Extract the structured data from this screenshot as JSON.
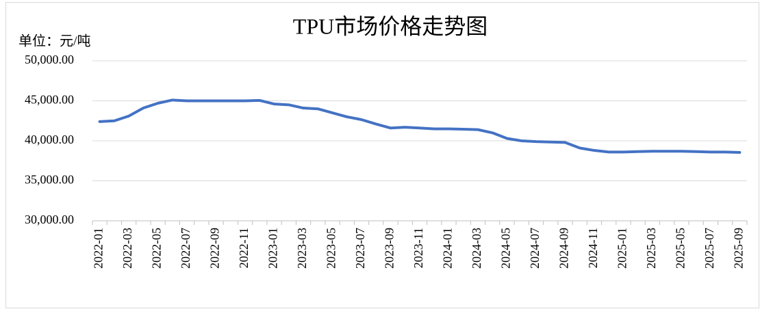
{
  "chart_data": {
    "type": "line",
    "title": "TPU市场价格走势图",
    "y_axis_label": "单位：元/吨",
    "categories": [
      "2022-01",
      null,
      "2022-03",
      null,
      "2022-05",
      null,
      "2022-07",
      null,
      "2022-09",
      null,
      "2022-11",
      null,
      "2023-01",
      null,
      "2023-03",
      null,
      "2023-05",
      null,
      "2023-07",
      null,
      "2023-09",
      null,
      "2023-11",
      null,
      "2024-01",
      null,
      "2024-03",
      null,
      "2024-05",
      null,
      "2024-07",
      null,
      "2024-09",
      null,
      "2024-11",
      null,
      "2025-01",
      null,
      "2025-03",
      null,
      "2025-05",
      null,
      "2025-07",
      null,
      "2025-09"
    ],
    "series": [
      {
        "name": "TPU",
        "color": "#4472c4",
        "values": [
          42400,
          42500,
          43100,
          44100,
          44700,
          45100,
          45000,
          45000,
          45000,
          45000,
          45000,
          45050,
          44600,
          44500,
          44100,
          44000,
          43500,
          43000,
          42650,
          42100,
          41600,
          41700,
          41600,
          41500,
          41500,
          41450,
          41400,
          41000,
          40300,
          40000,
          39900,
          39850,
          39800,
          39100,
          38800,
          38600,
          38600,
          38650,
          38700,
          38700,
          38700,
          38650,
          38600,
          38600,
          38550
        ]
      }
    ],
    "ylim": [
      30000,
      50000
    ],
    "yticks": [
      {
        "value": 30000,
        "label": "30,000.00"
      },
      {
        "value": 35000,
        "label": "35,000.00"
      },
      {
        "value": 40000,
        "label": "40,000.00"
      },
      {
        "value": 45000,
        "label": "45,000.00"
      },
      {
        "value": 50000,
        "label": "50,000.00"
      }
    ],
    "grid": true
  }
}
